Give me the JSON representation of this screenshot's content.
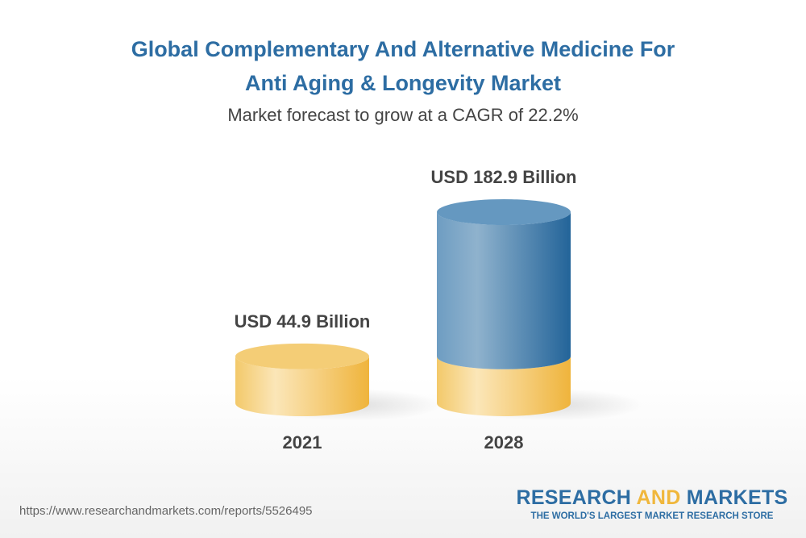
{
  "chart_data": {
    "type": "bar",
    "title": "Global Complementary And Alternative Medicine For Anti Aging & Longevity Market",
    "subtitle": "Market forecast to grow at a CAGR of 22.2%",
    "categories": [
      "2021",
      "2028"
    ],
    "values": [
      44.9,
      182.9
    ],
    "data_labels": [
      "USD 44.9 Billion",
      "USD 182.9 Billion"
    ],
    "unit": "USD Billion",
    "xlabel": "",
    "ylabel": "",
    "ylim": [
      0,
      182.9
    ],
    "colors": {
      "base": "#f2c45a",
      "growth": "#2d6da3"
    }
  },
  "title_line1": "Global Complementary And Alternative Medicine For",
  "title_line2": "Anti Aging & Longevity Market",
  "footer": {
    "url": "https://www.researchandmarkets.com/reports/5526495",
    "logo_part1": "RESEARCH ",
    "logo_part2": "AND",
    "logo_part3": " MARKETS",
    "logo_tagline": "THE WORLD'S LARGEST MARKET RESEARCH STORE"
  }
}
